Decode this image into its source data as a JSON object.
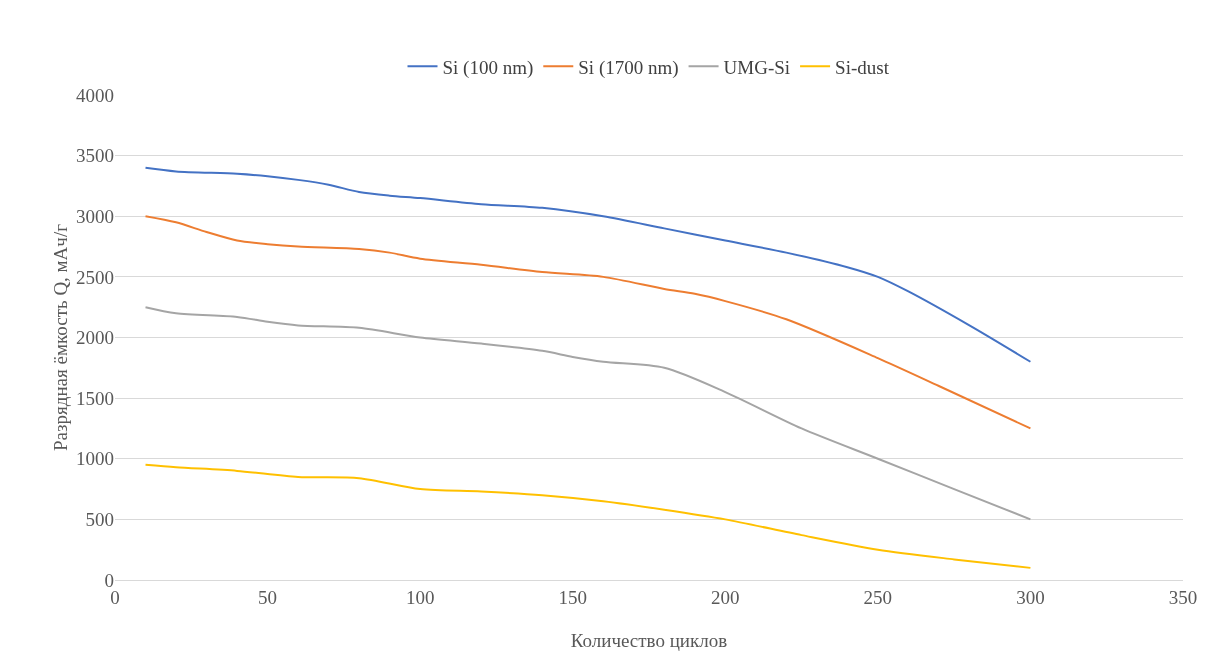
{
  "chart_data": {
    "type": "line",
    "xlabel": "Количество циклов",
    "ylabel": "Разрядная ёмкость Q, мАч/г",
    "xlim": [
      0,
      350
    ],
    "xticks": [
      0,
      50,
      100,
      150,
      200,
      250,
      300,
      350
    ],
    "ylim": [
      0,
      4000
    ],
    "yticks": [
      0,
      500,
      1000,
      1500,
      2000,
      2500,
      3000,
      3500,
      4000
    ],
    "grid": "y",
    "legend": "top",
    "marker": "none",
    "line_style": "solid",
    "series": [
      {
        "name": "Si (100 nm)",
        "color": "#4472c4",
        "x": [
          10,
          20,
          40,
          50,
          60,
          70,
          80,
          90,
          100,
          120,
          140,
          160,
          180,
          200,
          220,
          240,
          250,
          260,
          280,
          300
        ],
        "values": [
          3400,
          3370,
          3350,
          3330,
          3300,
          3260,
          3200,
          3170,
          3150,
          3100,
          3070,
          3000,
          2900,
          2800,
          2700,
          2580,
          2500,
          2380,
          2100,
          1800
        ]
      },
      {
        "name": "Si (1700 nm)",
        "color": "#ed7d31",
        "x": [
          10,
          20,
          30,
          40,
          50,
          60,
          80,
          90,
          100,
          120,
          140,
          160,
          180,
          190,
          200,
          220,
          250,
          270,
          300
        ],
        "values": [
          3000,
          2950,
          2870,
          2800,
          2770,
          2750,
          2730,
          2700,
          2650,
          2600,
          2540,
          2500,
          2400,
          2360,
          2300,
          2150,
          1830,
          1600,
          1250
        ]
      },
      {
        "name": "UMG-Si",
        "color": "#a5a5a5",
        "x": [
          10,
          20,
          40,
          50,
          60,
          80,
          100,
          120,
          140,
          150,
          160,
          180,
          200,
          225,
          250,
          275,
          300
        ],
        "values": [
          2250,
          2200,
          2170,
          2130,
          2100,
          2080,
          2000,
          1950,
          1890,
          1840,
          1800,
          1750,
          1550,
          1250,
          1000,
          750,
          500
        ]
      },
      {
        "name": "Si-dust",
        "color": "#ffc000",
        "x": [
          10,
          20,
          40,
          60,
          80,
          100,
          120,
          140,
          160,
          180,
          200,
          225,
          250,
          275,
          300
        ],
        "values": [
          950,
          930,
          900,
          850,
          840,
          750,
          730,
          700,
          650,
          580,
          500,
          370,
          250,
          170,
          100
        ]
      }
    ]
  }
}
